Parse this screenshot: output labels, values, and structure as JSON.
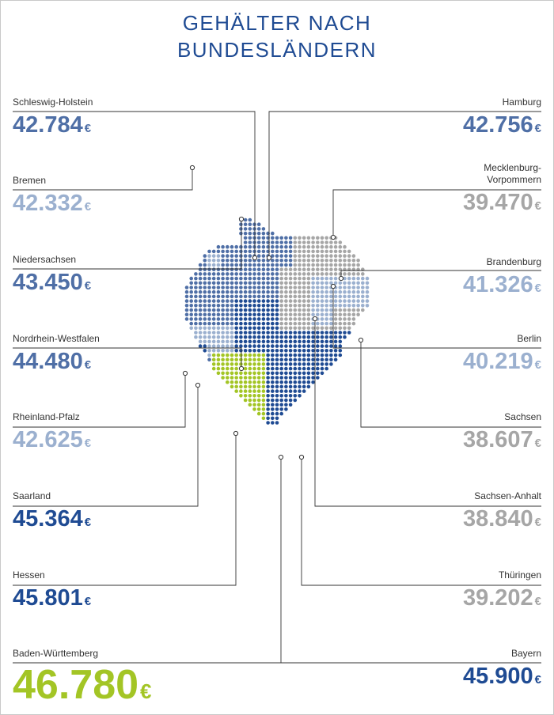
{
  "title_line1": "GEHÄLTER NACH",
  "title_line2": "BUNDESLÄNDERN",
  "colors": {
    "dark_blue": "#1f4b93",
    "mid_blue": "#4f6fa6",
    "light_blue": "#9bb0cf",
    "grey": "#a6a6a6",
    "green": "#a3c525",
    "navy": "#213b82"
  },
  "chart_data": {
    "type": "map",
    "title": "GEHÄLTER NACH BUNDESLÄNDERN",
    "unit": "€",
    "regions": [
      {
        "id": "sh",
        "name": "Schleswig-Holstein",
        "value": "42.784",
        "currency": "€",
        "side": "left",
        "color": "#4f6fa6"
      },
      {
        "id": "hb",
        "name": "Bremen",
        "value": "42.332",
        "currency": "€",
        "side": "left",
        "color": "#9bb0cf"
      },
      {
        "id": "ni",
        "name": "Niedersachsen",
        "value": "43.450",
        "currency": "€",
        "side": "left",
        "color": "#4f6fa6"
      },
      {
        "id": "nw",
        "name": "Nordrhein-Westfalen",
        "value": "44.480",
        "currency": "€",
        "side": "left",
        "color": "#4f6fa6"
      },
      {
        "id": "rp",
        "name": "Rheinland-Pfalz",
        "value": "42.625",
        "currency": "€",
        "side": "left",
        "color": "#9bb0cf"
      },
      {
        "id": "sl",
        "name": "Saarland",
        "value": "45.364",
        "currency": "€",
        "side": "left",
        "color": "#1f4b93"
      },
      {
        "id": "he",
        "name": "Hessen",
        "value": "45.801",
        "currency": "€",
        "side": "left",
        "color": "#1f4b93"
      },
      {
        "id": "bw",
        "name": "Baden-Württemberg",
        "value": "46.780",
        "currency": "€",
        "side": "left",
        "color": "#a3c525"
      },
      {
        "id": "hh",
        "name": "Hamburg",
        "value": "42.756",
        "currency": "€",
        "side": "right",
        "color": "#4f6fa6"
      },
      {
        "id": "mv",
        "name": "Mecklenburg-\nVorpommern",
        "value": "39.470",
        "currency": "€",
        "side": "right",
        "color": "#a6a6a6"
      },
      {
        "id": "bb",
        "name": "Brandenburg",
        "value": "41.326",
        "currency": "€",
        "side": "right",
        "color": "#9bb0cf"
      },
      {
        "id": "be",
        "name": "Berlin",
        "value": "40.219",
        "currency": "€",
        "side": "right",
        "color": "#9bb0cf"
      },
      {
        "id": "sn",
        "name": "Sachsen",
        "value": "38.607",
        "currency": "€",
        "side": "right",
        "color": "#a6a6a6"
      },
      {
        "id": "st",
        "name": "Sachsen-Anhalt",
        "value": "38.840",
        "currency": "€",
        "side": "right",
        "color": "#a6a6a6"
      },
      {
        "id": "th",
        "name": "Thüringen",
        "value": "39.202",
        "currency": "€",
        "side": "right",
        "color": "#a6a6a6"
      },
      {
        "id": "by",
        "name": "Bayern",
        "value": "45.900",
        "currency": "€",
        "side": "right",
        "color": "#1f4b93"
      }
    ]
  }
}
